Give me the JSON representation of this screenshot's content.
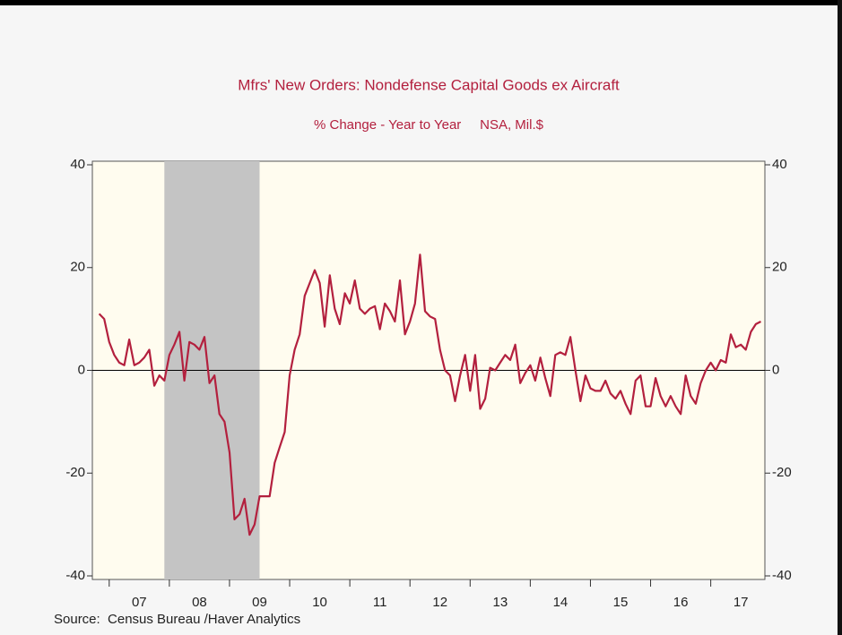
{
  "chart_data": {
    "type": "line",
    "title": "Mfrs' New Orders: Nondefense Capital Goods ex Aircraft",
    "subtitle": "% Change - Year to Year     NSA, Mil.$",
    "source": "Source:  Census Bureau /Haver Analytics",
    "xlim": [
      2006.72,
      2017.9
    ],
    "ylim": [
      -40,
      40
    ],
    "yticks": [
      -40,
      -20,
      0,
      20,
      40
    ],
    "xticks": [
      {
        "value": 2007,
        "label": "07"
      },
      {
        "value": 2008,
        "label": "08"
      },
      {
        "value": 2009,
        "label": "09"
      },
      {
        "value": 2010,
        "label": "10"
      },
      {
        "value": 2011,
        "label": "11"
      },
      {
        "value": 2012,
        "label": "12"
      },
      {
        "value": 2013,
        "label": "13"
      },
      {
        "value": 2014,
        "label": "14"
      },
      {
        "value": 2015,
        "label": "15"
      },
      {
        "value": 2016,
        "label": "16"
      },
      {
        "value": 2017,
        "label": "17"
      }
    ],
    "shading": [
      [
        2007.917,
        2009.5
      ]
    ],
    "shading_color": "#c4c4c4",
    "x": [
      2006.833,
      2006.917,
      2007.0,
      2007.083,
      2007.167,
      2007.25,
      2007.333,
      2007.417,
      2007.5,
      2007.583,
      2007.667,
      2007.75,
      2007.833,
      2007.917,
      2008.0,
      2008.083,
      2008.167,
      2008.25,
      2008.333,
      2008.417,
      2008.5,
      2008.583,
      2008.667,
      2008.75,
      2008.833,
      2008.917,
      2009.0,
      2009.083,
      2009.167,
      2009.25,
      2009.333,
      2009.417,
      2009.5,
      2009.583,
      2009.667,
      2009.75,
      2009.833,
      2009.917,
      2010.0,
      2010.083,
      2010.167,
      2010.25,
      2010.333,
      2010.417,
      2010.5,
      2010.583,
      2010.667,
      2010.75,
      2010.833,
      2010.917,
      2011.0,
      2011.083,
      2011.167,
      2011.25,
      2011.333,
      2011.417,
      2011.5,
      2011.583,
      2011.667,
      2011.75,
      2011.833,
      2011.917,
      2012.0,
      2012.083,
      2012.167,
      2012.25,
      2012.333,
      2012.417,
      2012.5,
      2012.583,
      2012.667,
      2012.75,
      2012.833,
      2012.917,
      2013.0,
      2013.083,
      2013.167,
      2013.25,
      2013.333,
      2013.417,
      2013.5,
      2013.583,
      2013.667,
      2013.75,
      2013.833,
      2013.917,
      2014.0,
      2014.083,
      2014.167,
      2014.25,
      2014.333,
      2014.417,
      2014.5,
      2014.583,
      2014.667,
      2014.75,
      2014.833,
      2014.917,
      2015.0,
      2015.083,
      2015.167,
      2015.25,
      2015.333,
      2015.417,
      2015.5,
      2015.583,
      2015.667,
      2015.75,
      2015.833,
      2015.917,
      2016.0,
      2016.083,
      2016.167,
      2016.25,
      2016.333,
      2016.417,
      2016.5,
      2016.583,
      2016.667,
      2016.75,
      2016.833,
      2016.917,
      2017.0,
      2017.083,
      2017.167,
      2017.25,
      2017.333,
      2017.417,
      2017.5,
      2017.583,
      2017.667,
      2017.75,
      2017.833
    ],
    "series": [
      {
        "color": "#b3203e",
        "values": [
          11,
          10,
          5.5,
          3,
          1.5,
          1,
          6,
          1,
          1.5,
          2.5,
          4,
          -3,
          -1,
          -2,
          3,
          5,
          7.5,
          -2,
          5.5,
          5,
          4,
          6.5,
          -2.5,
          -1,
          -8.5,
          -10,
          -16,
          -29,
          -28,
          -25,
          -32,
          -30,
          -24.5,
          -24.5,
          -24.5,
          -18,
          -15,
          -12,
          -1,
          4,
          7,
          14.5,
          17,
          19.5,
          17,
          8.5,
          18.5,
          12,
          9,
          15,
          13,
          17.5,
          12,
          11,
          12,
          12.5,
          8,
          13,
          11.5,
          9.5,
          17.5,
          7,
          9.5,
          13,
          22.5,
          11.5,
          10.5,
          10,
          4,
          0,
          -1,
          -6,
          -1,
          3,
          -4,
          3,
          -7.5,
          -5.5,
          0.5,
          0,
          1.5,
          3,
          2,
          5,
          -2.5,
          -0.5,
          1,
          -2,
          2.5,
          -1.5,
          -5,
          3,
          3.5,
          3,
          6.5,
          0,
          -6,
          -1,
          -3.5,
          -4,
          -4,
          -2,
          -4.5,
          -5.5,
          -4,
          -6.5,
          -8.5,
          -2,
          -1,
          -7,
          -7,
          -1.5,
          -5,
          -7,
          -5,
          -7,
          -8.5,
          -1,
          -5,
          -6.5,
          -2.5,
          0,
          1.5,
          0,
          2,
          1.5,
          7,
          4.5,
          5,
          4,
          7.5,
          9,
          9.5
        ]
      }
    ]
  }
}
